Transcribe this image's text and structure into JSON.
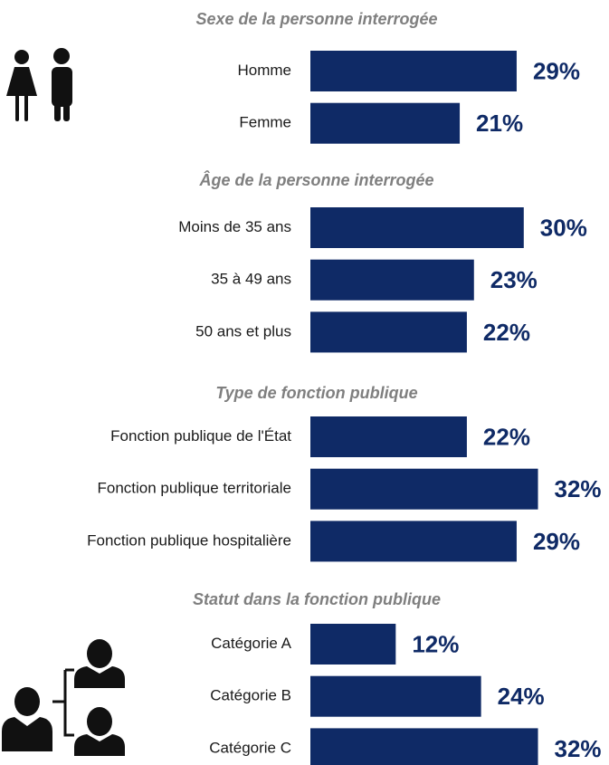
{
  "chart_data": [
    {
      "type": "bar",
      "title": "Sexe de la personne interrogée",
      "categories": [
        "Homme",
        "Femme"
      ],
      "values": [
        29,
        21
      ],
      "value_labels": [
        "29%",
        "21%"
      ],
      "color": "#0f2a66"
    },
    {
      "type": "bar",
      "title": "Âge de la personne interrogée",
      "categories": [
        "Moins de 35 ans",
        "35 à 49 ans",
        "50 ans et plus"
      ],
      "values": [
        30,
        23,
        22
      ],
      "value_labels": [
        "30%",
        "23%",
        "22%"
      ],
      "color": "#0f2a66"
    },
    {
      "type": "bar",
      "title": "Type de fonction publique",
      "categories": [
        "Fonction publique de l'État",
        "Fonction publique territoriale",
        "Fonction publique hospitalière"
      ],
      "values": [
        22,
        32,
        29
      ],
      "value_labels": [
        "22%",
        "32%",
        "29%"
      ],
      "color": "#0f2a66"
    },
    {
      "type": "bar",
      "title": "Statut dans la fonction publique",
      "categories": [
        "Catégorie A",
        "Catégorie B",
        "Catégorie C"
      ],
      "values": [
        12,
        24,
        32
      ],
      "value_labels": [
        "12%",
        "24%",
        "32%"
      ],
      "color": "#0f2a66"
    }
  ]
}
